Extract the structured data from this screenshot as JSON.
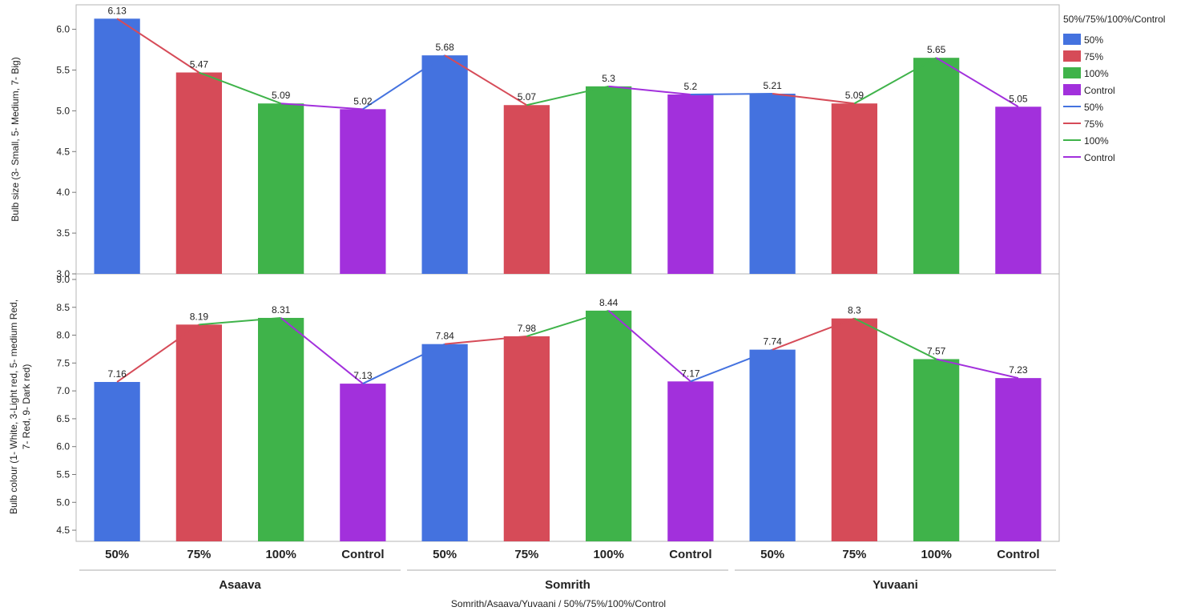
{
  "chart_data": {
    "type": "bar",
    "legend": {
      "title": "50%/75%/100%/Control",
      "placement": "right",
      "bar_entries": [
        "50%",
        "75%",
        "100%",
        "Control"
      ],
      "line_entries": [
        "50%",
        "75%",
        "100%",
        "Control"
      ]
    },
    "colors": {
      "50%": "#4472df",
      "75%": "#d64b58",
      "100%": "#3fb34a",
      "Control": "#a230dc"
    },
    "x_title": "Somrith/Asaava/Yuvaani / 50%/75%/100%/Control",
    "groups": [
      "Asaava",
      "Somrith",
      "Yuvaani"
    ],
    "categories": [
      "50%",
      "75%",
      "100%",
      "Control"
    ],
    "panels": [
      {
        "ylabel": "Bulb size (3- Small, 5- Medium, 7- Big)",
        "ylim": [
          3.0,
          6.3
        ],
        "yticks": [
          "3.0",
          "3.5",
          "4.0",
          "4.5",
          "5.0",
          "5.5",
          "6.0"
        ],
        "values": [
          6.13,
          5.47,
          5.09,
          5.02,
          5.68,
          5.07,
          5.3,
          5.2,
          5.21,
          5.09,
          5.65,
          5.05
        ],
        "labels": [
          "6.13",
          "5.47",
          "5.09",
          "5.02",
          "5.68",
          "5.07",
          "5.3",
          "5.2",
          "5.21",
          "5.09",
          "5.65",
          "5.05"
        ]
      },
      {
        "ylabel": "Bulb colour (1- White, 3-Light red, 5- medium Red, 7- Red, 9- Dark red)",
        "ylim": [
          4.3,
          9.1
        ],
        "yticks": [
          "4.5",
          "5.0",
          "5.5",
          "6.0",
          "6.5",
          "7.0",
          "7.5",
          "8.0",
          "8.5",
          "9.0"
        ],
        "values": [
          7.16,
          8.19,
          8.31,
          7.13,
          7.84,
          7.98,
          8.44,
          7.17,
          7.74,
          8.3,
          7.57,
          7.23
        ],
        "labels": [
          "7.16",
          "8.19",
          "8.31",
          "7.13",
          "7.84",
          "7.98",
          "8.44",
          "7.17",
          "7.74",
          "8.3",
          "7.57",
          "7.23"
        ]
      }
    ]
  }
}
